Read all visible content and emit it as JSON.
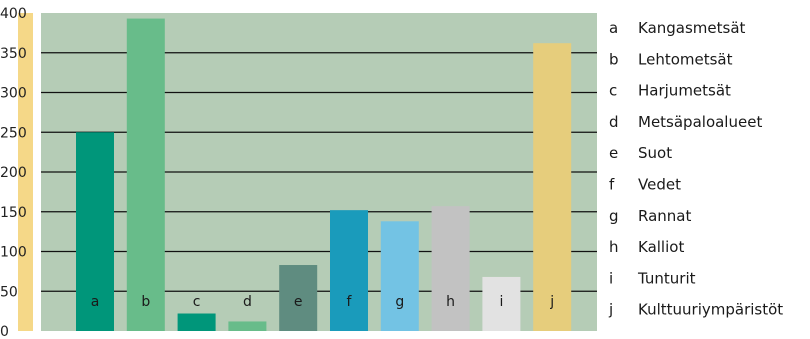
{
  "chart_data": {
    "type": "bar",
    "categories": [
      "a",
      "b",
      "c",
      "d",
      "e",
      "f",
      "g",
      "h",
      "i",
      "j"
    ],
    "values": [
      250,
      393,
      22,
      12,
      83,
      152,
      138,
      157,
      68,
      362
    ],
    "colors": [
      "#00967A",
      "#68BC8A",
      "#00967A",
      "#68BC8A",
      "#5F8C80",
      "#1A9BBB",
      "#73C3E4",
      "#C2C2C2",
      "#E2E2E2",
      "#E6CD7C"
    ],
    "ylim": [
      0,
      400
    ],
    "yticks": [
      "0",
      "50",
      "100",
      "150",
      "200",
      "250",
      "300",
      "350",
      "400"
    ],
    "grid": true,
    "plot_background": "#B5CCB6",
    "axis_band_color": "#F5D888",
    "legend_position": "right",
    "legend": [
      {
        "key": "a",
        "label": "Kangasmetsät"
      },
      {
        "key": "b",
        "label": "Lehtometsät"
      },
      {
        "key": "c",
        "label": "Harjumetsät"
      },
      {
        "key": "d",
        "label": "Metsäpaloalueet"
      },
      {
        "key": "e",
        "label": "Suot"
      },
      {
        "key": "f",
        "label": "Vedet"
      },
      {
        "key": "g",
        "label": "Rannat"
      },
      {
        "key": "h",
        "label": "Kalliot"
      },
      {
        "key": "i",
        "label": "Tunturit"
      },
      {
        "key": "j",
        "label": "Kulttuuriympäristöt"
      }
    ]
  }
}
